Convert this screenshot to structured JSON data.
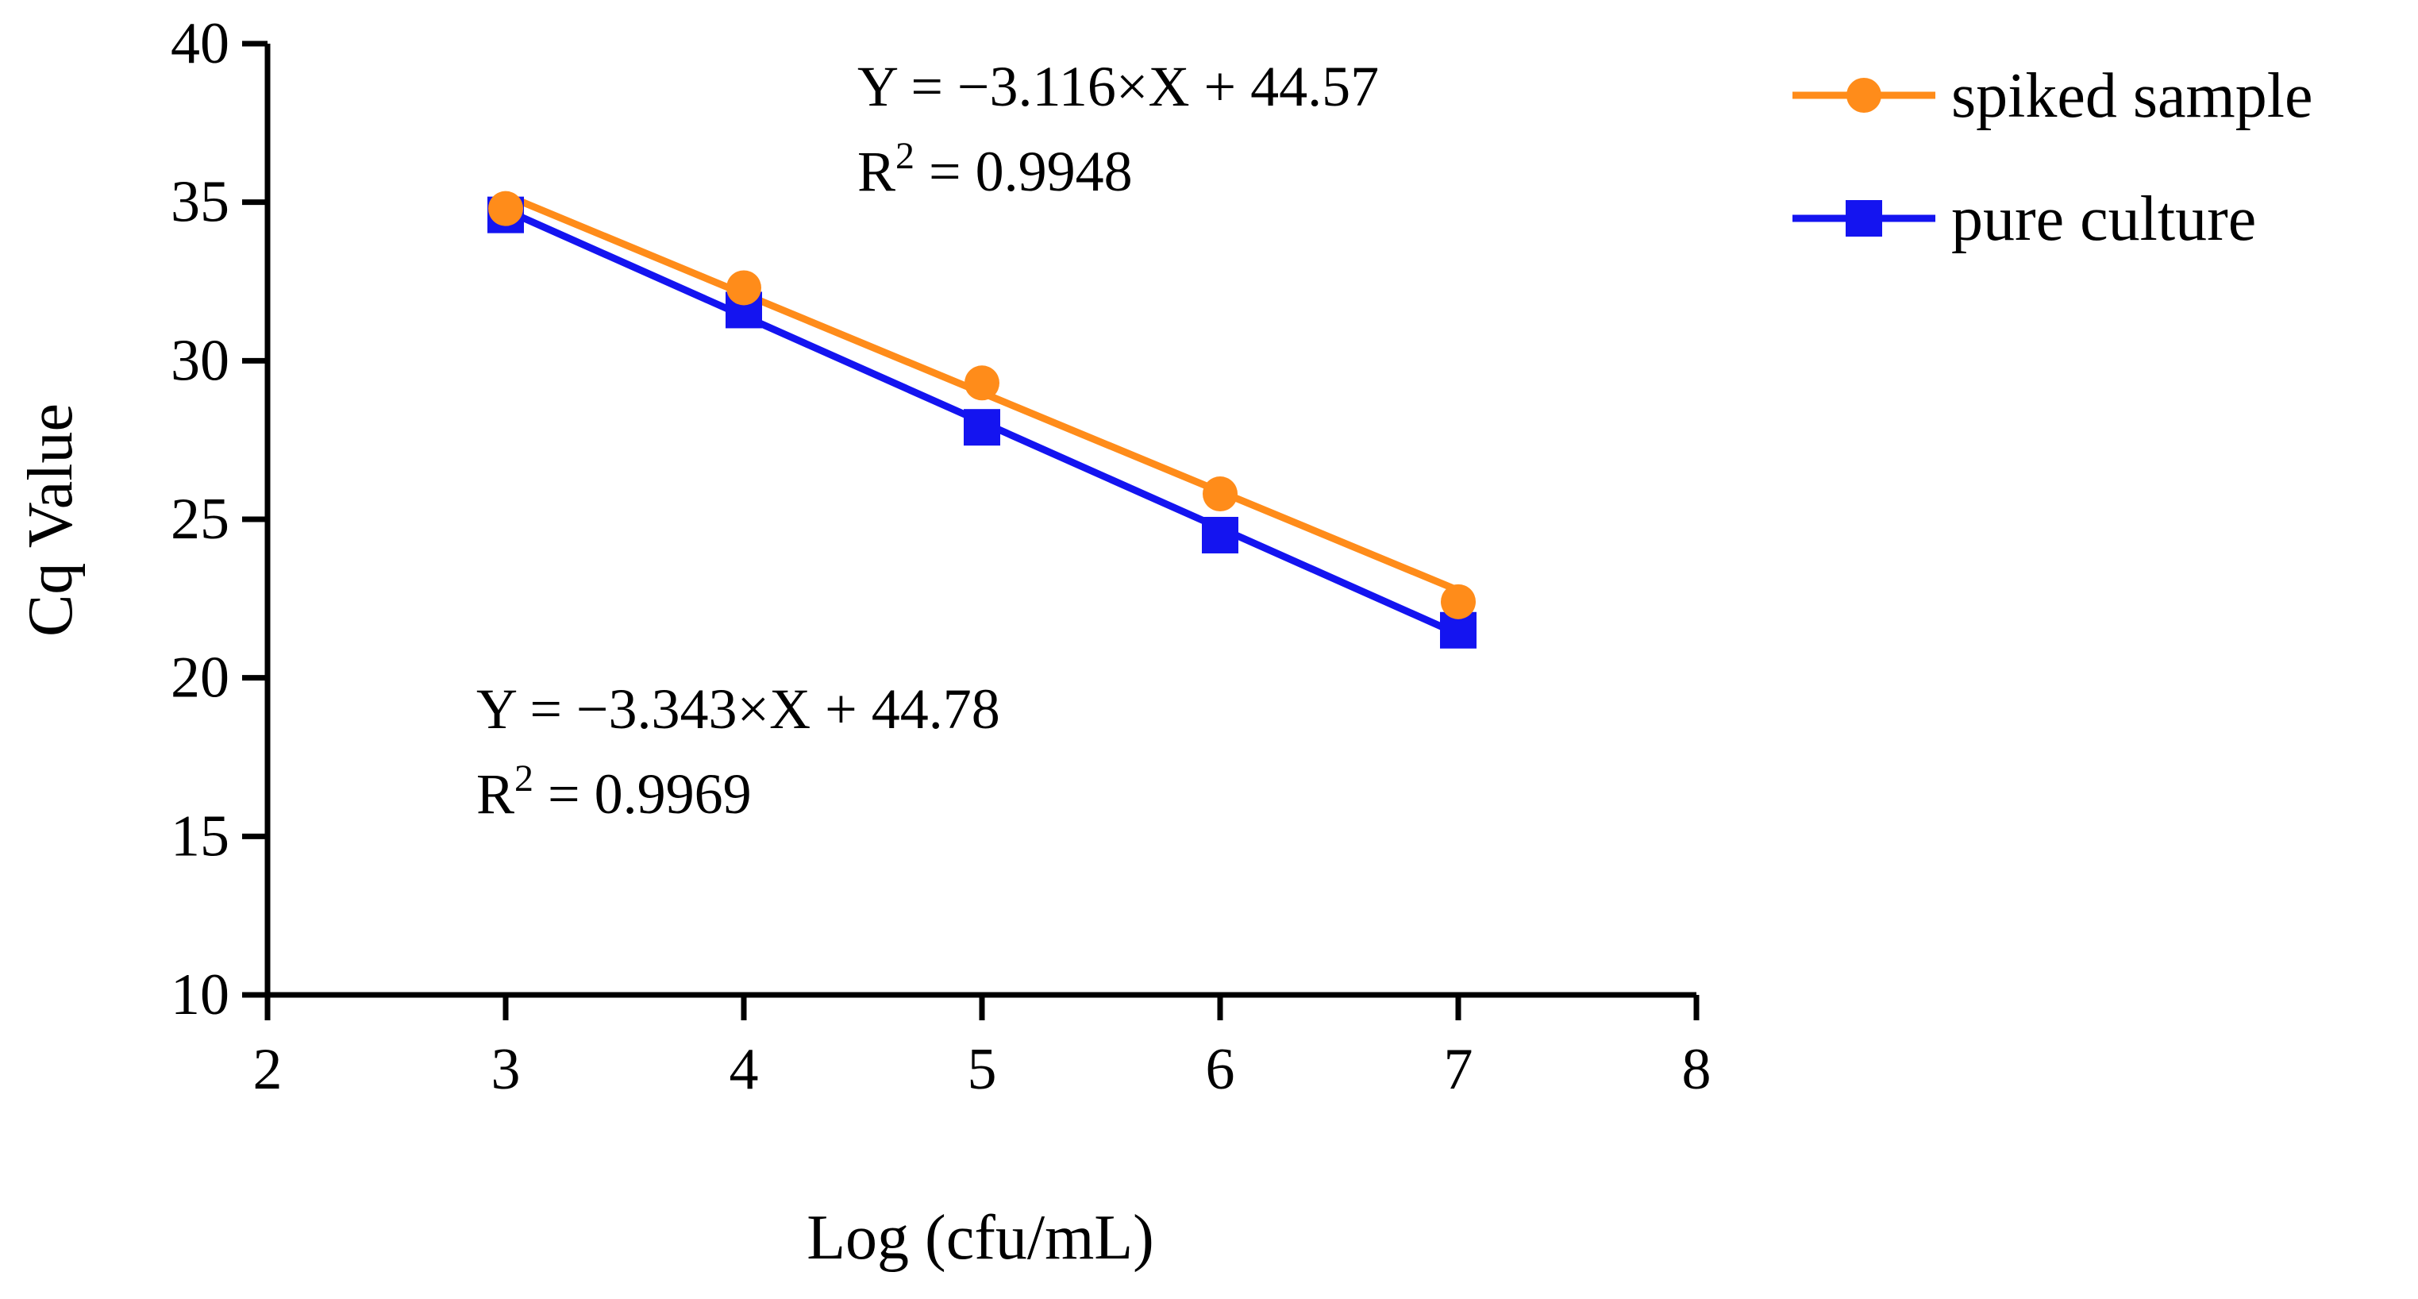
{
  "chart_data": {
    "type": "line",
    "title": "",
    "xlabel": "Log (cfu/mL)",
    "ylabel": "Cq Value",
    "xlim": [
      2,
      8
    ],
    "ylim": [
      10,
      40
    ],
    "xticks": [
      2,
      3,
      4,
      5,
      6,
      7,
      8
    ],
    "yticks": [
      10,
      15,
      20,
      25,
      30,
      35,
      40
    ],
    "grid": false,
    "legend_position": "top-right, outside plot",
    "series": [
      {
        "name": "spiked sample",
        "color": "#FF8C1A",
        "marker": "circle",
        "x": [
          3,
          4,
          5,
          6,
          7
        ],
        "y": [
          34.8,
          32.3,
          29.3,
          25.8,
          22.4
        ],
        "fit": {
          "slope": -3.116,
          "intercept": 44.57
        }
      },
      {
        "name": "pure culture",
        "color": "#1414F0",
        "marker": "square",
        "x": [
          3,
          4,
          5,
          6,
          7
        ],
        "y": [
          34.6,
          31.6,
          27.9,
          24.5,
          21.5
        ],
        "fit": {
          "slope": -3.343,
          "intercept": 44.78
        }
      }
    ],
    "annotations": [
      {
        "series": "spiked sample",
        "equation": "Y = −3.116×X + 44.57",
        "r2_label": "R",
        "r2_sup": "2",
        "r2_value": " = 0.9948"
      },
      {
        "series": "pure culture",
        "equation": "Y = −3.343×X + 44.78",
        "r2_label": "R",
        "r2_sup": "2",
        "r2_value": " = 0.9969"
      }
    ]
  }
}
